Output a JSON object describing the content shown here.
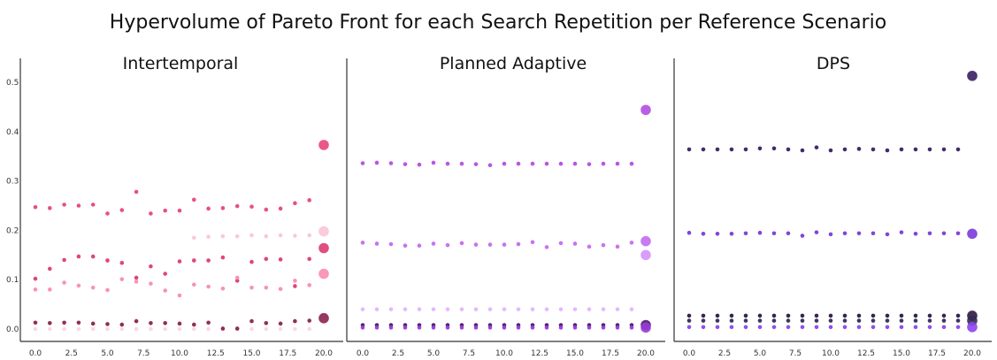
{
  "figure": {
    "title": "Hypervolume of Pareto Front for each Search Repetition per Reference Scenario"
  },
  "chart_data": [
    {
      "type": "scatter",
      "title": "Intertemporal",
      "xlabel": "",
      "ylabel": "",
      "xlim": [
        -0.8,
        20.8
      ],
      "ylim": [
        -0.02,
        0.53
      ],
      "xticks": [
        "0.0",
        "2.5",
        "5.0",
        "7.5",
        "10.0",
        "12.5",
        "15.0",
        "17.5",
        "20.0"
      ],
      "yticks": [
        "0.0",
        "0.1",
        "0.2",
        "0.3",
        "0.4",
        "0.5"
      ],
      "x": [
        0,
        1,
        2,
        3,
        4,
        5,
        6,
        7,
        8,
        9,
        10,
        11,
        12,
        13,
        14,
        15,
        16,
        17,
        18,
        19
      ],
      "series": [
        {
          "color": "#e8457f",
          "values": [
            0.247,
            0.245,
            0.252,
            0.25,
            0.252,
            0.234,
            0.241,
            0.278,
            0.234,
            0.24,
            0.24,
            0.262,
            0.244,
            0.245,
            0.249,
            0.248,
            0.242,
            0.244,
            0.255,
            0.261
          ],
          "final": 0.373
        },
        {
          "color": "#fbc4d8",
          "values": [
            null,
            null,
            null,
            null,
            null,
            null,
            null,
            null,
            null,
            null,
            null,
            0.185,
            0.187,
            0.188,
            0.188,
            0.19,
            0.188,
            0.19,
            0.189,
            0.19
          ],
          "final": 0.198
        },
        {
          "color": "#dd3c70",
          "values": [
            0.102,
            0.122,
            0.14,
            0.147,
            0.147,
            0.139,
            0.134,
            0.104,
            0.127,
            0.112,
            0.137,
            0.139,
            0.139,
            0.145,
            0.098,
            0.136,
            0.142,
            0.141,
            0.087,
            0.142
          ],
          "final": 0.164
        },
        {
          "color": "#f98cb2",
          "values": [
            0.08,
            0.08,
            0.094,
            0.088,
            0.084,
            0.079,
            0.101,
            0.096,
            0.092,
            0.078,
            0.068,
            0.09,
            0.086,
            0.082,
            0.104,
            0.084,
            0.084,
            0.081,
            0.098,
            0.089
          ],
          "final": 0.112
        },
        {
          "color": "#fbd6e3",
          "values": [
            0.0,
            0.0,
            0.0,
            0.0,
            0.0,
            0.0,
            0.0,
            0.0,
            0.0,
            0.0,
            0.0,
            0.0,
            0.0,
            0.0,
            0.0,
            0.0,
            0.0,
            0.0,
            0.0,
            0.0
          ],
          "final": null
        },
        {
          "color": "#8a2350",
          "values": [
            0.013,
            0.012,
            0.013,
            0.013,
            0.011,
            0.01,
            0.009,
            0.016,
            0.012,
            0.012,
            0.011,
            0.009,
            0.013,
            0.001,
            0.001,
            0.016,
            0.012,
            0.011,
            0.016,
            0.017
          ],
          "final": 0.022
        }
      ]
    },
    {
      "type": "scatter",
      "title": "Planned Adaptive",
      "xlabel": "",
      "ylabel": "",
      "xlim": [
        -0.8,
        20.8
      ],
      "ylim": [
        -0.02,
        0.53
      ],
      "xticks": [
        "0.0",
        "2.5",
        "5.0",
        "7.5",
        "10.0",
        "12.5",
        "15.0",
        "17.5",
        "20.0"
      ],
      "yticks": [],
      "x": [
        0,
        1,
        2,
        3,
        4,
        5,
        6,
        7,
        8,
        9,
        10,
        11,
        12,
        13,
        14,
        15,
        16,
        17,
        18,
        19
      ],
      "series": [
        {
          "color": "#b34ee0",
          "values": [
            0.336,
            0.337,
            0.336,
            0.334,
            0.333,
            0.337,
            0.335,
            0.335,
            0.334,
            0.332,
            0.335,
            0.335,
            0.335,
            0.335,
            0.335,
            0.335,
            0.334,
            0.335,
            0.335,
            0.335
          ],
          "final": 0.444
        },
        {
          "color": "#c36bf0",
          "values": [
            0.175,
            0.173,
            0.172,
            0.169,
            0.169,
            0.173,
            0.17,
            0.174,
            0.171,
            0.171,
            0.171,
            0.172,
            0.176,
            0.166,
            0.174,
            0.173,
            0.167,
            0.17,
            0.167,
            0.175
          ],
          "final": 0.178
        },
        {
          "color": "#d692fb",
          "values": [
            null,
            null,
            null,
            null,
            null,
            null,
            null,
            null,
            null,
            null,
            null,
            null,
            null,
            null,
            null,
            null,
            null,
            null,
            null,
            null
          ],
          "final": 0.15
        },
        {
          "color": "#e3b5fc",
          "values": [
            0.04,
            0.04,
            0.04,
            0.04,
            0.04,
            0.04,
            0.04,
            0.04,
            0.04,
            0.04,
            0.04,
            0.04,
            0.04,
            0.04,
            0.04,
            0.04,
            0.04,
            0.04,
            0.04,
            0.04
          ],
          "final": null
        },
        {
          "color": "#4a1a6a",
          "values": [
            0.008,
            0.008,
            0.008,
            0.008,
            0.008,
            0.008,
            0.008,
            0.008,
            0.008,
            0.008,
            0.008,
            0.008,
            0.008,
            0.008,
            0.008,
            0.008,
            0.008,
            0.008,
            0.008,
            0.008
          ],
          "final": 0.008
        },
        {
          "color": "#9a3ad9",
          "values": [
            0.003,
            0.003,
            0.003,
            0.003,
            0.003,
            0.003,
            0.003,
            0.003,
            0.003,
            0.003,
            0.003,
            0.003,
            0.003,
            0.003,
            0.003,
            0.003,
            0.003,
            0.003,
            0.003,
            0.003
          ],
          "final": 0.003
        }
      ]
    },
    {
      "type": "scatter",
      "title": "DPS",
      "xlabel": "",
      "ylabel": "",
      "xlim": [
        -0.8,
        20.8
      ],
      "ylim": [
        -0.02,
        0.53
      ],
      "xticks": [
        "0.0",
        "2.5",
        "5.0",
        "7.5",
        "10.0",
        "12.5",
        "15.0",
        "17.5",
        "20.0"
      ],
      "yticks": [],
      "x": [
        0,
        1,
        2,
        3,
        4,
        5,
        6,
        7,
        8,
        9,
        10,
        11,
        12,
        13,
        14,
        15,
        16,
        17,
        18,
        19
      ],
      "series": [
        {
          "color": "#3a1f63",
          "values": [
            0.364,
            0.364,
            0.364,
            0.364,
            0.364,
            0.366,
            0.366,
            0.364,
            0.362,
            0.368,
            0.362,
            0.364,
            0.365,
            0.364,
            0.362,
            0.364,
            0.364,
            0.364,
            0.364,
            0.364
          ],
          "final": 0.513
        },
        {
          "color": "#7b3ad9",
          "values": [
            0.195,
            0.193,
            0.193,
            0.193,
            0.194,
            0.195,
            0.194,
            0.194,
            0.189,
            0.196,
            0.192,
            0.194,
            0.194,
            0.194,
            0.192,
            0.196,
            0.193,
            0.194,
            0.194,
            0.194
          ],
          "final": 0.193
        },
        {
          "color": "#2c1846",
          "values": [
            0.027,
            0.027,
            0.027,
            0.027,
            0.027,
            0.027,
            0.027,
            0.027,
            0.027,
            0.027,
            0.027,
            0.027,
            0.027,
            0.027,
            0.027,
            0.027,
            0.027,
            0.027,
            0.027,
            0.027
          ],
          "final": 0.027
        },
        {
          "color": "#332a52",
          "values": [
            0.017,
            0.017,
            0.017,
            0.017,
            0.017,
            0.017,
            0.017,
            0.017,
            0.017,
            0.017,
            0.017,
            0.017,
            0.017,
            0.017,
            0.017,
            0.017,
            0.017,
            0.017,
            0.017,
            0.017
          ],
          "final": 0.017
        },
        {
          "color": "#8a45ee",
          "values": [
            0.004,
            0.004,
            0.004,
            0.004,
            0.004,
            0.004,
            0.004,
            0.004,
            0.004,
            0.004,
            0.004,
            0.004,
            0.004,
            0.004,
            0.004,
            0.004,
            0.004,
            0.004,
            0.004,
            0.004
          ],
          "final": 0.004
        }
      ]
    }
  ]
}
